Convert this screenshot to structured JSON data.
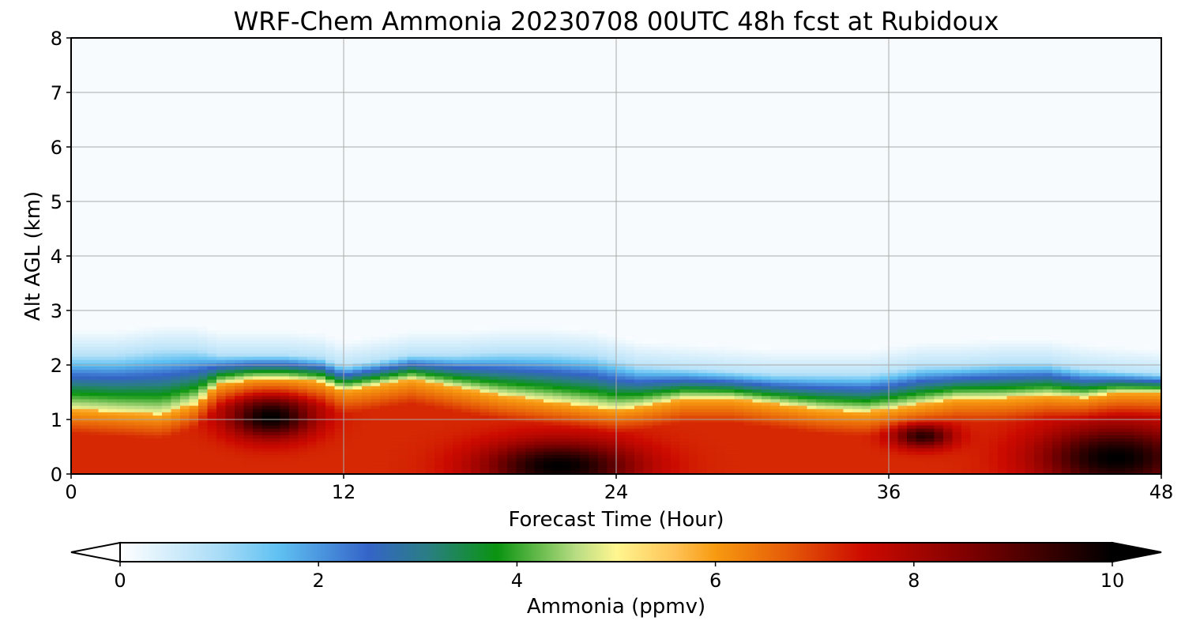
{
  "chart_data": {
    "type": "heatmap",
    "title": "WRF-Chem Ammonia  20230708 00UTC 48h fcst at Rubidoux",
    "xlabel": "Forecast Time (Hour)",
    "ylabel": "Alt AGL (km)",
    "xlim": [
      0,
      48
    ],
    "ylim": [
      0,
      8
    ],
    "xticks": [
      "0",
      "12",
      "24",
      "36",
      "48"
    ],
    "yticks": [
      "0",
      "1",
      "2",
      "3",
      "4",
      "5",
      "6",
      "7",
      "8"
    ],
    "grid": true,
    "colorbar": {
      "label": "Ammonia  (ppmv)",
      "range": [
        0,
        10
      ],
      "ticks": [
        "0",
        "2",
        "4",
        "6",
        "8",
        "10"
      ],
      "extend": "both",
      "colormap_stops": [
        {
          "value": 0,
          "color": "#ffffff"
        },
        {
          "value": 1,
          "color": "#a9dcf7"
        },
        {
          "value": 1.6,
          "color": "#5fc1f2"
        },
        {
          "value": 2.5,
          "color": "#3464c8"
        },
        {
          "value": 3.1,
          "color": "#2a7e84"
        },
        {
          "value": 3.8,
          "color": "#0a9410"
        },
        {
          "value": 4.6,
          "color": "#b9dd83"
        },
        {
          "value": 5,
          "color": "#fff690"
        },
        {
          "value": 5.6,
          "color": "#ffc255"
        },
        {
          "value": 6,
          "color": "#f79a10"
        },
        {
          "value": 6.7,
          "color": "#e65d08"
        },
        {
          "value": 7.5,
          "color": "#cc0a00"
        },
        {
          "value": 8.6,
          "color": "#7a0000"
        },
        {
          "value": 10,
          "color": "#000000"
        }
      ]
    },
    "field": {
      "description_levels": "approximate ammonia (ppmv) vs forecast hour (x) and altitude km (y)",
      "x_hours": [
        0,
        2,
        4,
        5.5,
        6.5,
        8,
        9.5,
        11,
        12,
        13.5,
        15,
        17,
        19,
        21,
        23,
        24,
        25,
        27,
        29,
        31,
        33,
        35,
        36,
        37.5,
        39,
        41,
        43,
        44.5,
        46,
        48
      ],
      "mixing_top_km": [
        1.2,
        1.15,
        1.1,
        1.3,
        1.65,
        1.75,
        1.75,
        1.7,
        1.55,
        1.65,
        1.75,
        1.6,
        1.45,
        1.35,
        1.25,
        1.2,
        1.25,
        1.4,
        1.4,
        1.3,
        1.2,
        1.15,
        1.2,
        1.3,
        1.4,
        1.4,
        1.45,
        1.4,
        1.5,
        1.5
      ],
      "blue_top_km": [
        2.2,
        2.2,
        2.3,
        2.3,
        2.2,
        2.2,
        2.2,
        2.15,
        2.0,
        2.1,
        2.2,
        2.2,
        2.25,
        2.25,
        2.2,
        2.1,
        2.0,
        1.95,
        1.9,
        1.85,
        1.85,
        1.85,
        1.9,
        2.0,
        2.0,
        2.05,
        2.05,
        1.95,
        1.9,
        1.85
      ],
      "peaks": [
        {
          "x": 8.8,
          "y": 1.05,
          "sx": 2.2,
          "sy": 0.45,
          "amp": 10
        },
        {
          "x": 21.5,
          "y": 0.15,
          "sx": 4.0,
          "sy": 0.55,
          "amp": 10
        },
        {
          "x": 37.5,
          "y": 0.7,
          "sx": 1.5,
          "sy": 0.25,
          "amp": 9.5
        },
        {
          "x": 46,
          "y": 0.3,
          "sx": 4,
          "sy": 0.7,
          "amp": 10
        }
      ]
    }
  }
}
